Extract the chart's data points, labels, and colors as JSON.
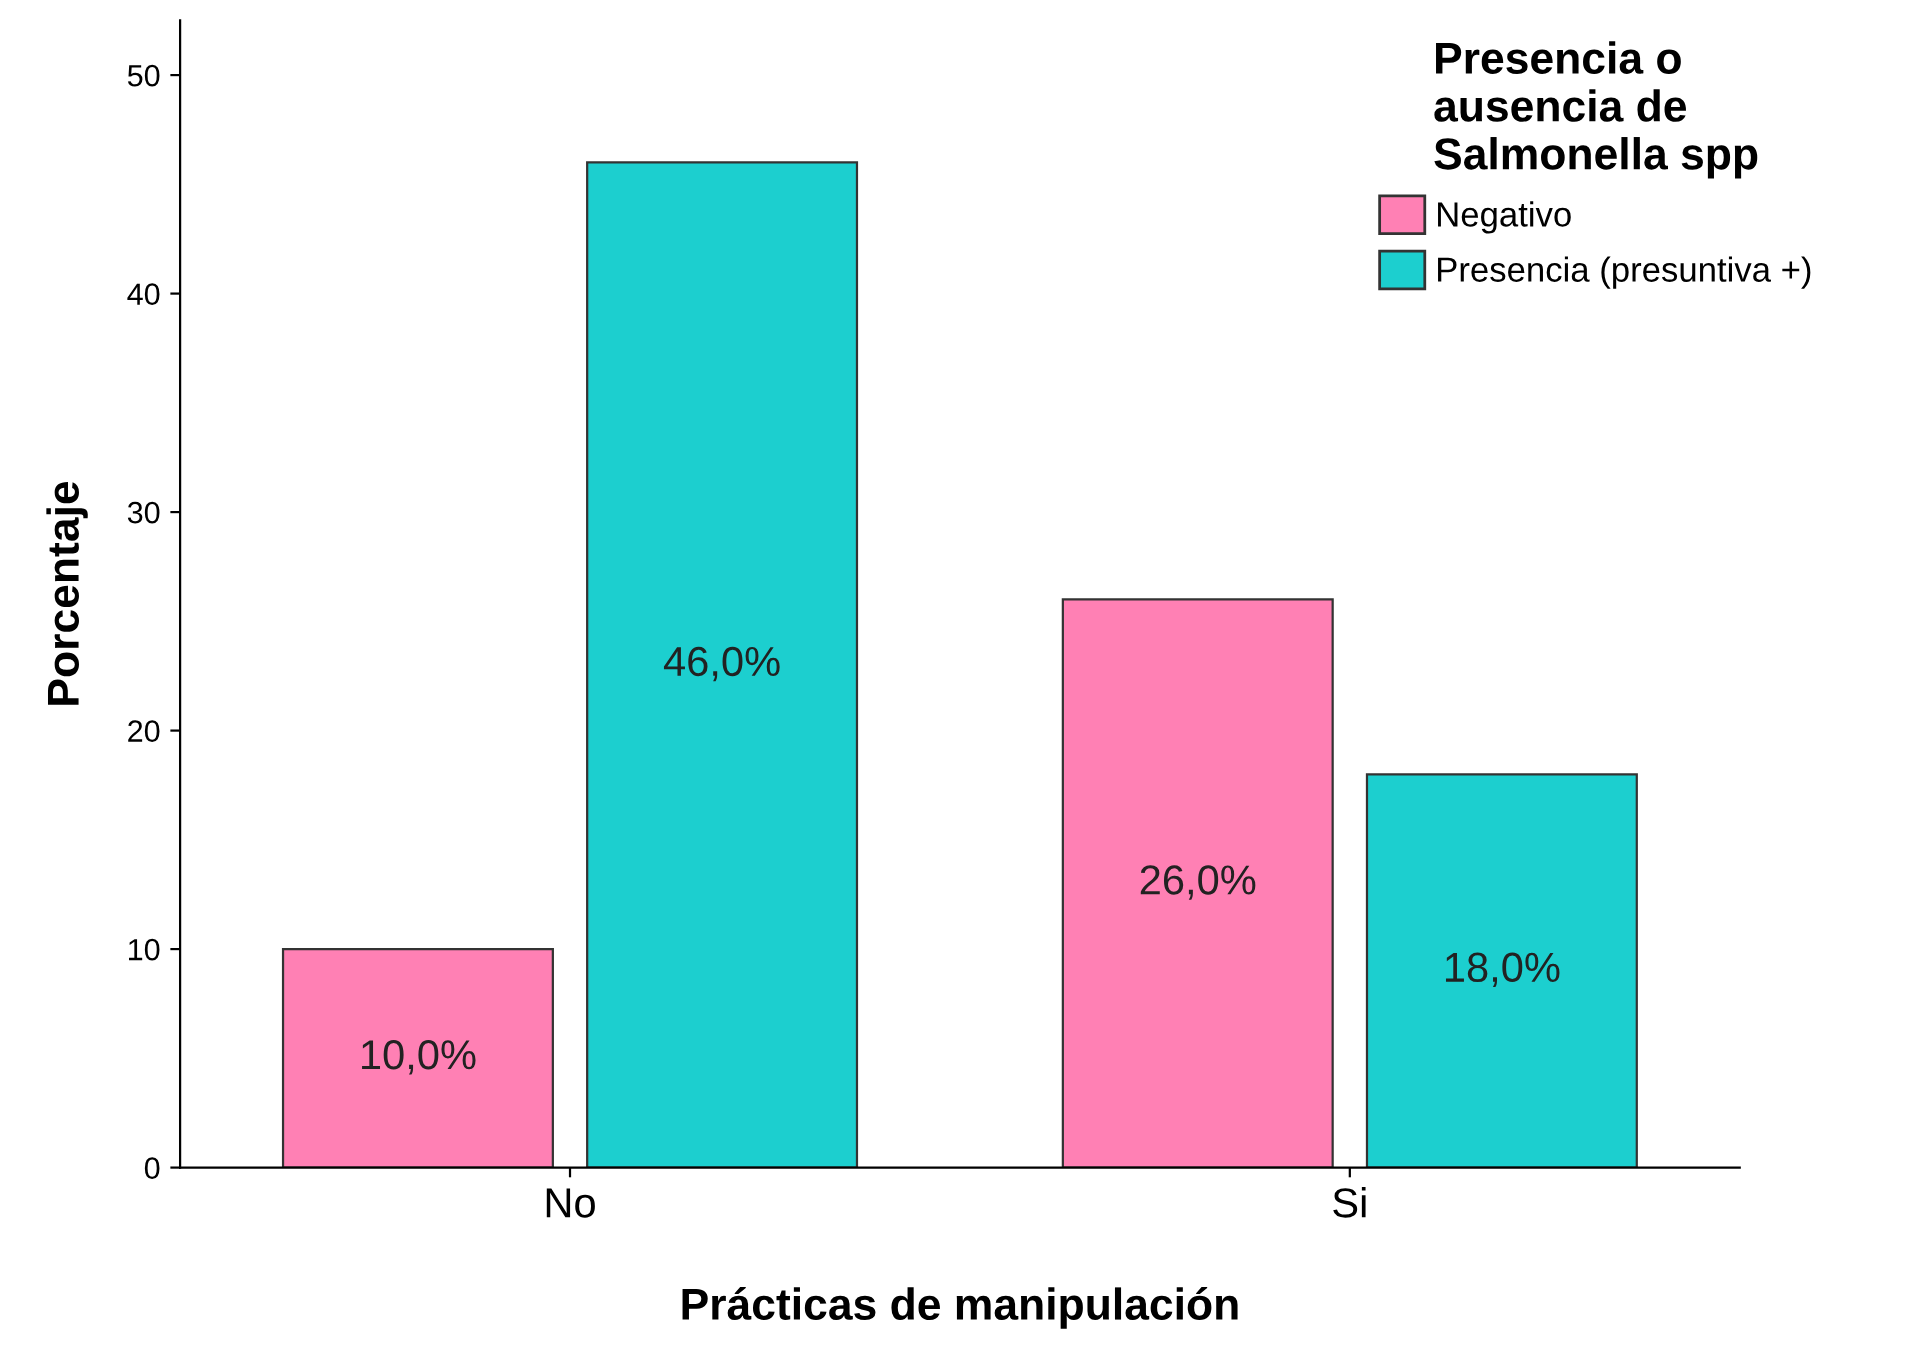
{
  "chart_data": {
    "type": "bar",
    "xlabel": "Prácticas de manipulación",
    "ylabel": "Porcentaje",
    "legend_title": "Presencia o\nausencia de\nSalmonella spp",
    "categories": [
      "No",
      "Si"
    ],
    "series": [
      {
        "name": "Negativo",
        "color": "#ff80b4",
        "values": [
          10,
          26
        ],
        "value_labels": [
          "10,0%",
          "26,0%"
        ]
      },
      {
        "name": "Presencia (presuntiva +)",
        "color": "#1ccfcf",
        "values": [
          46,
          18
        ],
        "value_labels": [
          "46,0%",
          "18,0%"
        ]
      }
    ],
    "ylim": [
      0,
      52.5
    ],
    "yticks": [
      0,
      10,
      20,
      30,
      40,
      50
    ],
    "grid": false,
    "legend": "top right"
  }
}
